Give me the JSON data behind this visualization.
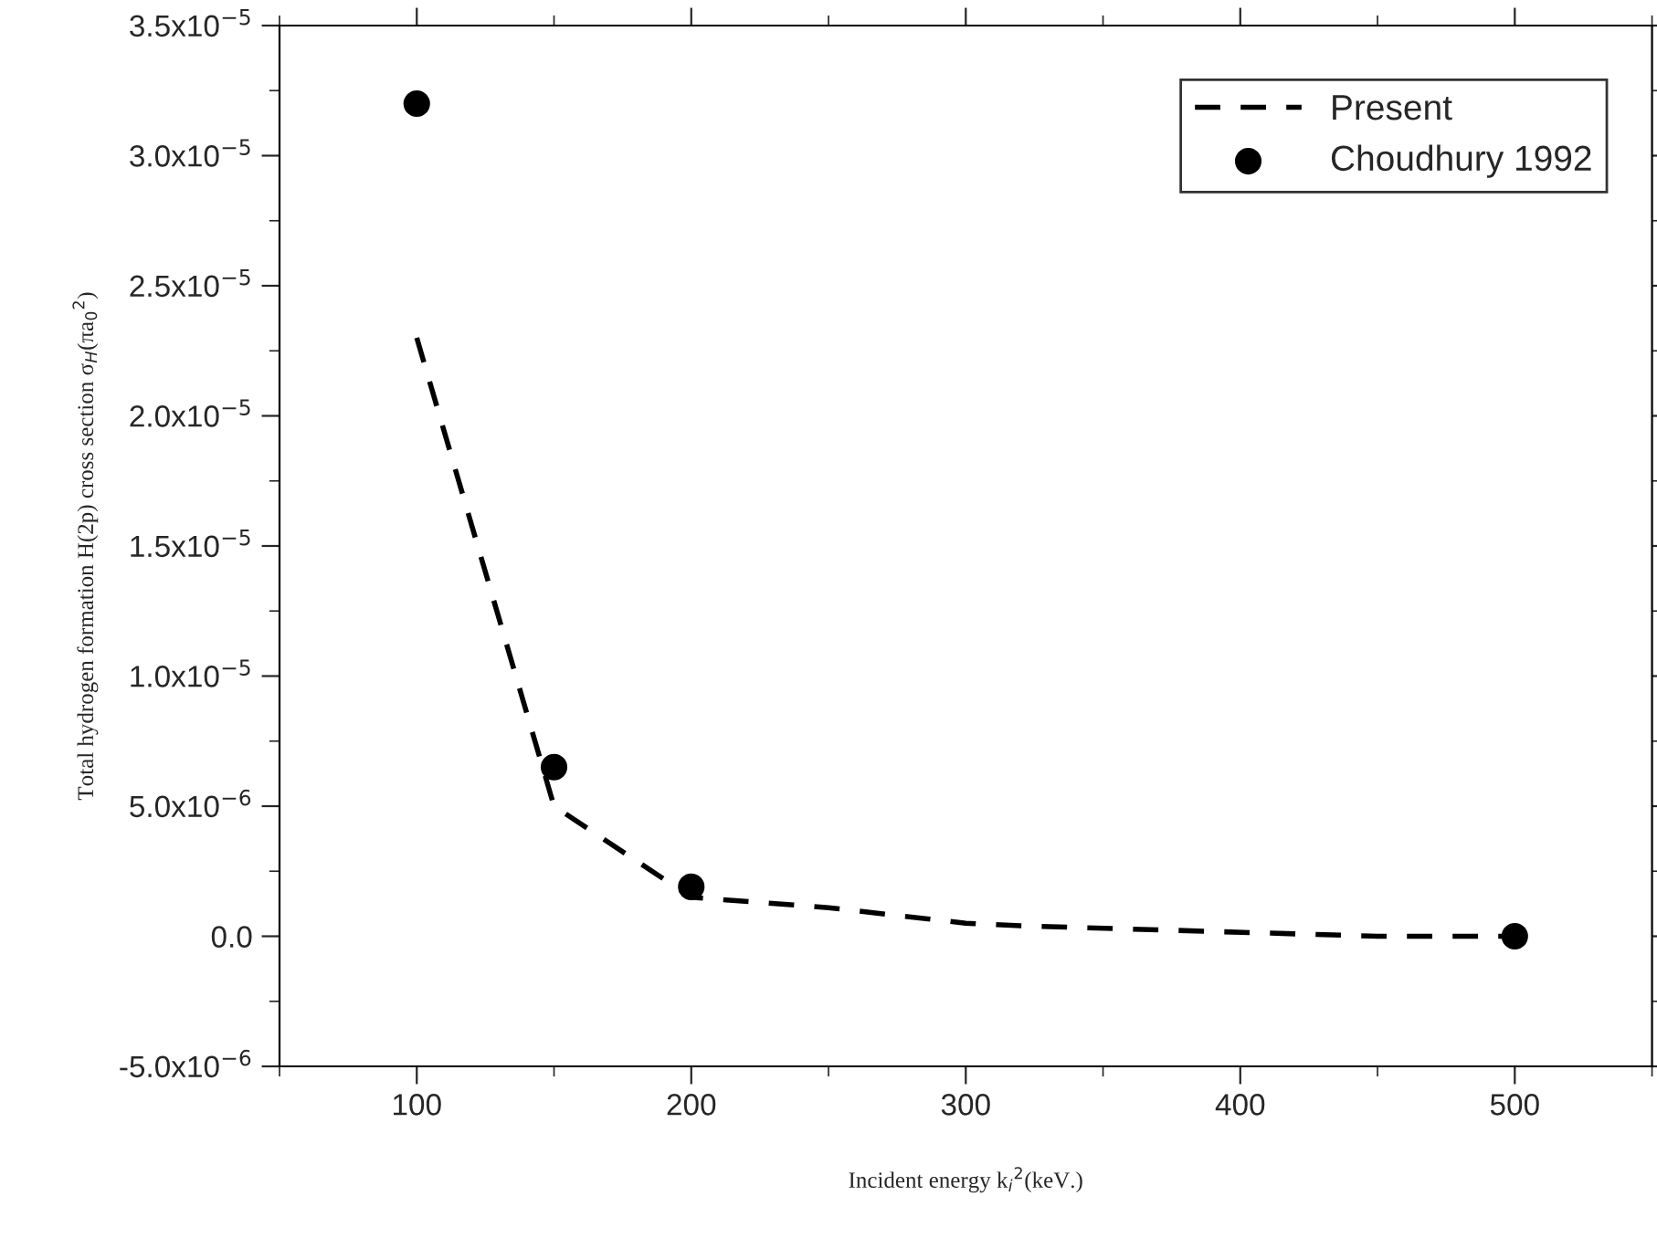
{
  "chart_data": {
    "type": "line",
    "xlabel": "Incident energy k$_{i}$$^{2}$(keV.)",
    "ylabel": "Total hydrogen formation H(2p) cross section σ$_{H}$(πa$_{0}$$^{2}$)",
    "series": [
      {
        "name": "Present",
        "color": "#000000",
        "line_style": "dashed",
        "marker": "none",
        "x": [
          100,
          150,
          200,
          250,
          300,
          320,
          450,
          500
        ],
        "values": [
          2.3e-05,
          5e-06,
          1.5e-06,
          1.1e-06,
          5e-07,
          4e-07,
          0,
          0
        ]
      },
      {
        "name": "Choudhury 1992",
        "type": "scatter",
        "color": "#000000",
        "marker": "circle",
        "x": [
          100,
          150,
          200,
          500
        ],
        "values": [
          3.2e-05,
          6.5e-06,
          1.9e-06,
          0
        ]
      }
    ],
    "xlim": [
      50,
      550
    ],
    "xticks": [
      100,
      200,
      300,
      400,
      500
    ],
    "ylim": [
      -5e-06,
      3.5e-05
    ],
    "yticks": [
      {
        "value": -5e-06,
        "label": "-5.0x10$^{−6}$"
      },
      {
        "value": 0,
        "label": "0.0"
      },
      {
        "value": 5e-06,
        "label": "5.0x10$^{−6}$"
      },
      {
        "value": 1e-05,
        "label": "1.0x10$^{−5}$"
      },
      {
        "value": 1.5e-05,
        "label": "1.5x10$^{−5}$"
      },
      {
        "value": 2e-05,
        "label": "2.0x10$^{−5}$"
      },
      {
        "value": 2.5e-05,
        "label": "2.5x10$^{−5}$"
      },
      {
        "value": 3e-05,
        "label": "3.0x10$^{−5}$"
      },
      {
        "value": 3.5e-05,
        "label": "3.5x10$^{−5}$"
      }
    ],
    "grid": false,
    "legend": "top right"
  }
}
